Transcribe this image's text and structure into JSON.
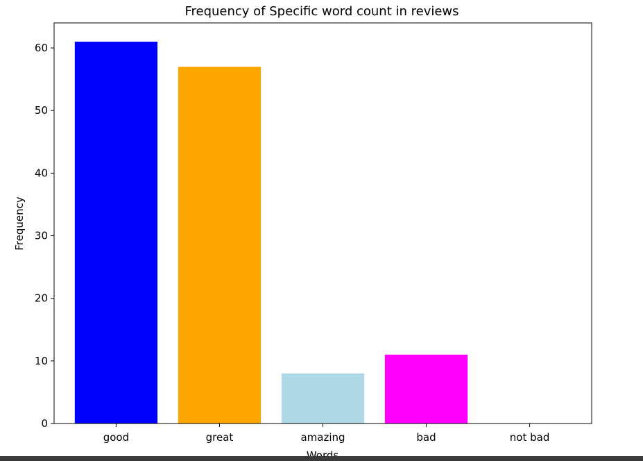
{
  "chart_data": {
    "type": "bar",
    "title": "Frequency of Specific word count in reviews",
    "xlabel": "Words",
    "ylabel": "Frequency",
    "categories": [
      "good",
      "great",
      "amazing",
      "bad",
      "not bad"
    ],
    "values": [
      61,
      57,
      8,
      11,
      0
    ],
    "colors": [
      "#0000ff",
      "#ffa500",
      "#add8e6",
      "#ff00ff",
      "#000000"
    ],
    "ylim": [
      0,
      64
    ],
    "yticks": [
      0,
      10,
      20,
      30,
      40,
      50,
      60
    ],
    "grid": false,
    "legend": "none"
  }
}
